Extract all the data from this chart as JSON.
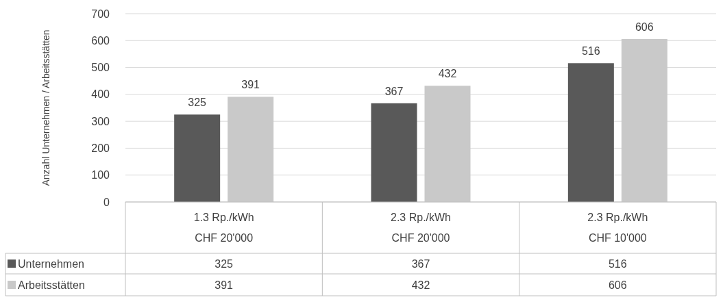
{
  "chart_data": {
    "type": "bar",
    "ylabel": "Anzahl Unternehmen / Arbeitsstätten",
    "categories": [
      "1.3 Rp./kWh\nCHF 20'000",
      "2.3 Rp./kWh\nCHF 20'000",
      "2.3 Rp./kWh\nCHF 10'000"
    ],
    "series": [
      {
        "name": "Unternehmen",
        "color": "#595959",
        "values": [
          325,
          367,
          516
        ],
        "value_labels": [
          "325",
          "367",
          "516"
        ]
      },
      {
        "name": "Arbeitsstätten",
        "color": "#c9c9c9",
        "values": [
          391,
          432,
          606
        ],
        "value_labels": [
          "391",
          "432",
          "606"
        ]
      }
    ],
    "legend": "bottom left",
    "ylim": [
      0,
      700
    ],
    "yticks": [
      0,
      100,
      200,
      300,
      400,
      500,
      600,
      700
    ],
    "grid": "y",
    "annotations": [
      "325",
      "367",
      "516",
      "391",
      "432",
      "606"
    ]
  }
}
